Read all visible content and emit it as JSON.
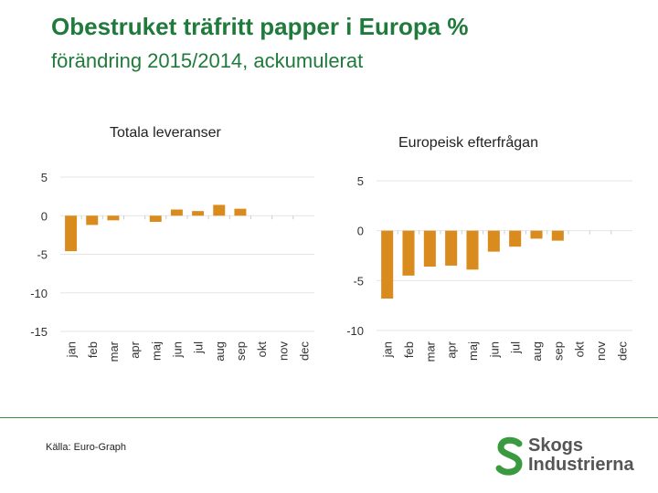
{
  "slide": {
    "title": "Obestruket träfritt papper i Europa %",
    "subtitle": "förändring 2015/2014, ackumulerat",
    "source": "Källa: Euro-Graph"
  },
  "logo": {
    "line1": "Skogs",
    "line2": "Industrierna",
    "mark_color": "#3a9a3f",
    "text_color": "#555555"
  },
  "colors": {
    "bar": "#d98b1e",
    "grid": "#e6e6e6",
    "title_green": "#1f7a3b",
    "divider": "#3a8a3f"
  },
  "chart_data": [
    {
      "type": "bar",
      "title": "Totala leveranser",
      "categories": [
        "jan",
        "feb",
        "mar",
        "apr",
        "maj",
        "jun",
        "jul",
        "aug",
        "sep",
        "okt",
        "nov",
        "dec"
      ],
      "values": [
        -4.6,
        -1.2,
        -0.6,
        null,
        -0.8,
        0.8,
        0.6,
        1.4,
        0.9,
        null,
        null,
        null
      ],
      "yticks": [
        5,
        0,
        -5,
        -10,
        -15
      ],
      "ylim": [
        -15,
        5
      ],
      "xlabel": "",
      "ylabel": ""
    },
    {
      "type": "bar",
      "title": "Europeisk  efterfrågan",
      "categories": [
        "jan",
        "feb",
        "mar",
        "apr",
        "maj",
        "jun",
        "jul",
        "aug",
        "sep",
        "okt",
        "nov",
        "dec"
      ],
      "values": [
        -6.8,
        -4.5,
        -3.6,
        -3.5,
        -3.9,
        -2.1,
        -1.6,
        -0.8,
        -1.0,
        null,
        null,
        null
      ],
      "yticks": [
        5,
        0,
        -5,
        -10
      ],
      "ylim": [
        -10,
        5
      ],
      "xlabel": "",
      "ylabel": ""
    }
  ]
}
